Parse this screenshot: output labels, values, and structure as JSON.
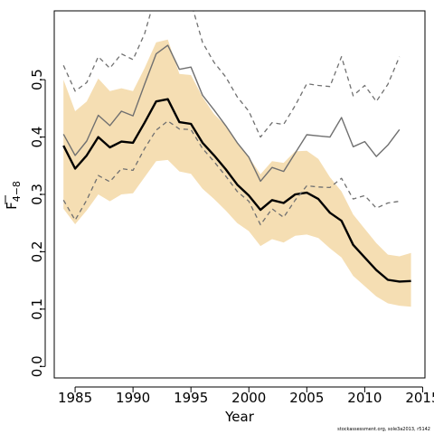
{
  "chart_data": {
    "type": "line",
    "xlabel": "Year",
    "ylabel_main": "F",
    "ylabel_sub": "4−8",
    "xlim": [
      1983.2,
      2015.2
    ],
    "ylim": [
      -0.02,
      0.62
    ],
    "xticks": [
      1985,
      1990,
      1995,
      2000,
      2005,
      2010,
      2015
    ],
    "yticks": [
      0.0,
      0.1,
      0.2,
      0.3,
      0.4,
      0.5
    ],
    "ytick_labels": [
      "0.0",
      "0.1",
      "0.2",
      "0.3",
      "0.4",
      "0.5"
    ],
    "grid": false,
    "legend": "none",
    "source_note": "stockassessment.org, sole3a2013, r5142",
    "band": {
      "color": "#f5deb3",
      "x": [
        1984,
        1985,
        1986,
        1987,
        1988,
        1989,
        1990,
        1991,
        1992,
        1993,
        1994,
        1995,
        1996,
        1997,
        1998,
        1999,
        2000,
        2001,
        2002,
        2003,
        2004,
        2005,
        2006,
        2007,
        2008,
        2009,
        2010,
        2011,
        2012,
        2013,
        2014
      ],
      "upper": [
        0.5,
        0.445,
        0.462,
        0.502,
        0.48,
        0.485,
        0.48,
        0.52,
        0.565,
        0.57,
        0.51,
        0.508,
        0.47,
        0.44,
        0.42,
        0.39,
        0.365,
        0.335,
        0.358,
        0.355,
        0.375,
        0.376,
        0.362,
        0.33,
        0.305,
        0.265,
        0.24,
        0.215,
        0.195,
        0.192,
        0.198
      ],
      "lower": [
        0.275,
        0.248,
        0.272,
        0.3,
        0.288,
        0.3,
        0.302,
        0.33,
        0.358,
        0.36,
        0.34,
        0.336,
        0.31,
        0.292,
        0.272,
        0.25,
        0.236,
        0.21,
        0.222,
        0.216,
        0.228,
        0.23,
        0.224,
        0.206,
        0.19,
        0.158,
        0.14,
        0.122,
        0.11,
        0.106,
        0.104
      ]
    },
    "series": [
      {
        "role": "estimate",
        "color": "#000000",
        "style": "solid-thick",
        "x": [
          1984,
          1985,
          1986,
          1987,
          1988,
          1989,
          1990,
          1991,
          1992,
          1993,
          1994,
          1995,
          1996,
          1997,
          1998,
          1999,
          2000,
          2001,
          2002,
          2003,
          2004,
          2005,
          2006,
          2007,
          2008,
          2009,
          2010,
          2011,
          2012,
          2013,
          2014
        ],
        "values": [
          0.385,
          0.345,
          0.368,
          0.4,
          0.382,
          0.392,
          0.39,
          0.425,
          0.462,
          0.466,
          0.426,
          0.423,
          0.39,
          0.368,
          0.344,
          0.317,
          0.298,
          0.273,
          0.29,
          0.285,
          0.3,
          0.303,
          0.292,
          0.268,
          0.254,
          0.212,
          0.19,
          0.168,
          0.151,
          0.148,
          0.149
        ]
      },
      {
        "role": "retro-estimate",
        "color": "#707070",
        "style": "solid-thin",
        "x": [
          1984,
          1985,
          1986,
          1987,
          1988,
          1989,
          1990,
          1991,
          1992,
          1993,
          1994,
          1995,
          1996,
          1997,
          1998,
          1999,
          2000,
          2001,
          2002,
          2003,
          2004,
          2005,
          2006,
          2007,
          2008,
          2009,
          2010,
          2011,
          2012,
          2013
        ],
        "values": [
          0.405,
          0.368,
          0.393,
          0.438,
          0.42,
          0.445,
          0.437,
          0.492,
          0.545,
          0.56,
          0.518,
          0.522,
          0.473,
          0.447,
          0.42,
          0.39,
          0.365,
          0.323,
          0.347,
          0.34,
          0.372,
          0.404,
          0.402,
          0.4,
          0.434,
          0.383,
          0.392,
          0.366,
          0.386,
          0.413
        ]
      },
      {
        "role": "retro-upper",
        "color": "#707070",
        "style": "dashed",
        "x": [
          1984,
          1985,
          1986,
          1987,
          1988,
          1989,
          1990,
          1991,
          1992,
          1993,
          1994,
          1995,
          1996,
          1997,
          1998,
          1999,
          2000,
          2001,
          2002,
          2003,
          2004,
          2005,
          2006,
          2007,
          2008,
          2009,
          2010,
          2011,
          2012,
          2013
        ],
        "values": [
          0.525,
          0.48,
          0.495,
          0.54,
          0.52,
          0.545,
          0.535,
          0.58,
          0.65,
          0.68,
          0.64,
          0.635,
          0.565,
          0.53,
          0.505,
          0.47,
          0.445,
          0.4,
          0.425,
          0.422,
          0.455,
          0.493,
          0.49,
          0.488,
          0.54,
          0.472,
          0.49,
          0.462,
          0.492,
          0.54
        ]
      },
      {
        "role": "retro-lower",
        "color": "#707070",
        "style": "dashed",
        "x": [
          1984,
          1985,
          1986,
          1987,
          1988,
          1989,
          1990,
          1991,
          1992,
          1993,
          1994,
          1995,
          1996,
          1997,
          1998,
          1999,
          2000,
          2001,
          2002,
          2003,
          2004,
          2005,
          2006,
          2007,
          2008,
          2009,
          2010,
          2011,
          2012,
          2013
        ],
        "values": [
          0.29,
          0.255,
          0.29,
          0.333,
          0.322,
          0.345,
          0.342,
          0.38,
          0.412,
          0.428,
          0.414,
          0.413,
          0.38,
          0.357,
          0.332,
          0.305,
          0.288,
          0.247,
          0.275,
          0.26,
          0.29,
          0.315,
          0.313,
          0.312,
          0.328,
          0.292,
          0.298,
          0.276,
          0.285,
          0.288
        ]
      }
    ]
  }
}
